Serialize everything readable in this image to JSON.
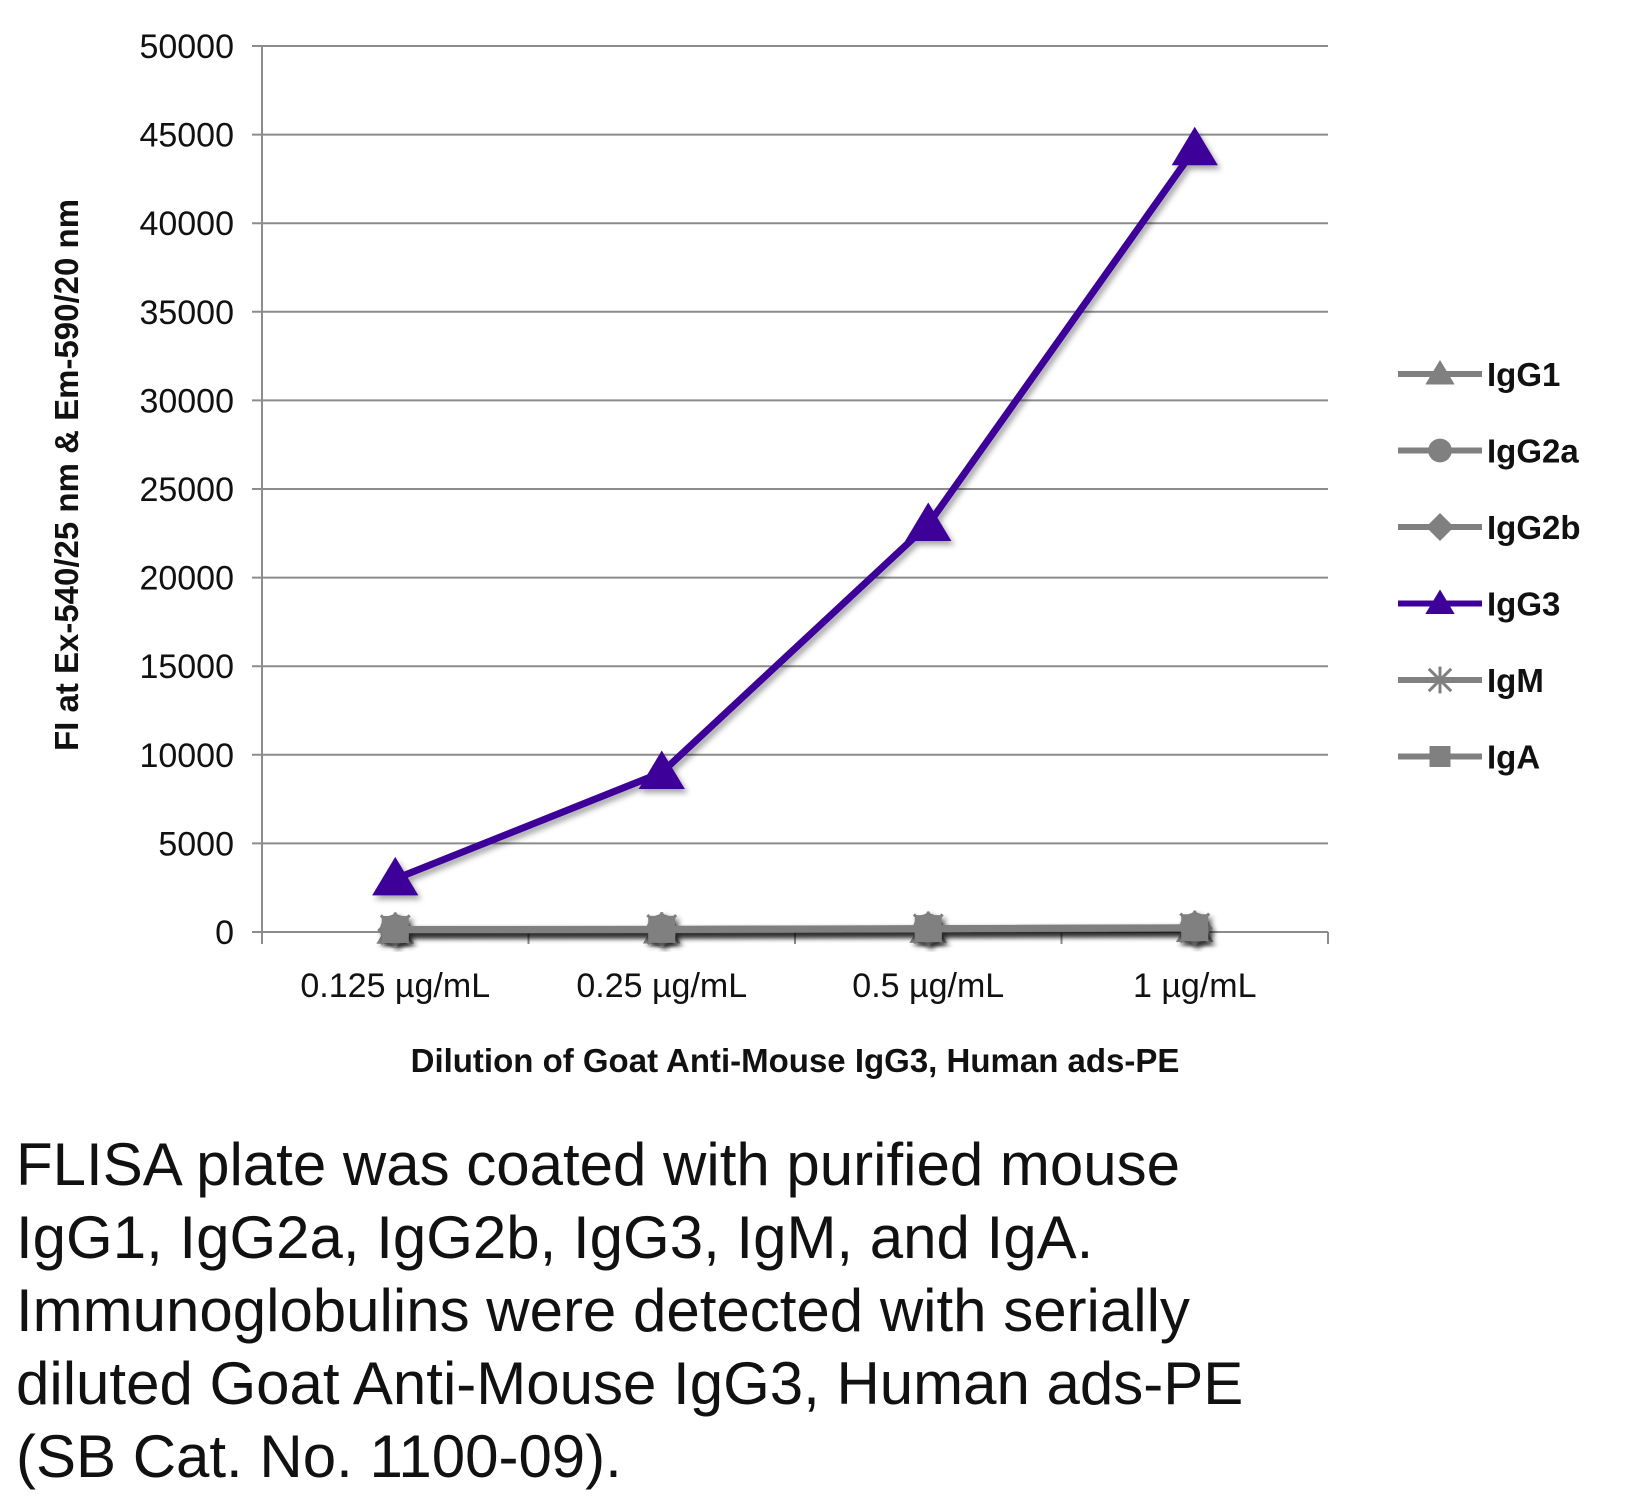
{
  "chart_data": {
    "type": "line",
    "title": "",
    "xlabel": "Dilution of Goat Anti-Mouse IgG3, Human ads-PE",
    "ylabel": "FI at Ex-540/25 nm & Em-590/20 nm",
    "categories": [
      "0.125 µg/mL",
      "0.25 µg/mL",
      "0.5 µg/mL",
      "1 µg/mL"
    ],
    "ylim": [
      0,
      50000
    ],
    "yticks": [
      0,
      5000,
      10000,
      15000,
      20000,
      25000,
      30000,
      35000,
      40000,
      45000,
      50000
    ],
    "grid": true,
    "legend_position": "right",
    "series": [
      {
        "name": "IgG1",
        "marker": "triangle",
        "color": "#808080",
        "values": [
          100,
          110,
          150,
          200
        ]
      },
      {
        "name": "IgG2a",
        "marker": "circle",
        "color": "#808080",
        "values": [
          120,
          130,
          170,
          220
        ]
      },
      {
        "name": "IgG2b",
        "marker": "diamond",
        "color": "#808080",
        "values": [
          110,
          120,
          160,
          210
        ]
      },
      {
        "name": "IgG3",
        "marker": "triangle",
        "color": "#3d0099",
        "values": [
          3000,
          9000,
          23000,
          44200
        ]
      },
      {
        "name": "IgM",
        "marker": "x",
        "color": "#808080",
        "values": [
          130,
          140,
          180,
          230
        ]
      },
      {
        "name": "IgA",
        "marker": "square",
        "color": "#808080",
        "values": [
          140,
          150,
          190,
          240
        ]
      }
    ]
  },
  "caption": {
    "lines": [
      "FLISA plate was coated with purified mouse",
      "IgG1, IgG2a, IgG2b, IgG3, IgM, and IgA.",
      "Immunoglobulins were detected with serially",
      "diluted Goat Anti-Mouse IgG3, Human ads-PE",
      "(SB Cat. No. 1100-09)."
    ]
  }
}
